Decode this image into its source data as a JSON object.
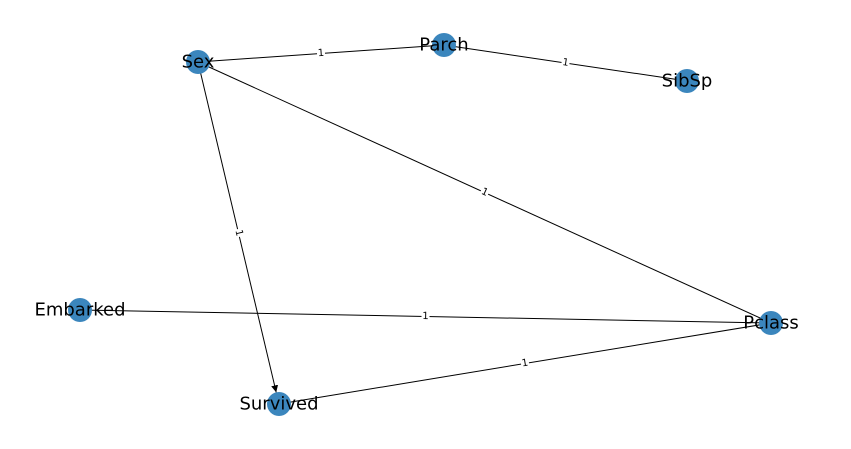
{
  "graph": {
    "node_color": "#3b86bd",
    "edge_color": "#000000",
    "nodes": [
      {
        "id": "sex",
        "label": "Sex"
      },
      {
        "id": "parch",
        "label": "Parch"
      },
      {
        "id": "sibsp",
        "label": "SibSp"
      },
      {
        "id": "embarked",
        "label": "Embarked"
      },
      {
        "id": "pclass",
        "label": "Pclass"
      },
      {
        "id": "survived",
        "label": "Survived"
      }
    ],
    "edges": [
      {
        "source": "sex",
        "target": "parch",
        "weight": "1",
        "directed": false
      },
      {
        "source": "parch",
        "target": "sibsp",
        "weight": "1",
        "directed": false
      },
      {
        "source": "sex",
        "target": "pclass",
        "weight": "1",
        "directed": false
      },
      {
        "source": "sex",
        "target": "survived",
        "weight": "1",
        "directed": true
      },
      {
        "source": "embarked",
        "target": "pclass",
        "weight": "1",
        "directed": false
      },
      {
        "source": "pclass",
        "target": "survived",
        "weight": "1",
        "directed": false
      }
    ]
  }
}
